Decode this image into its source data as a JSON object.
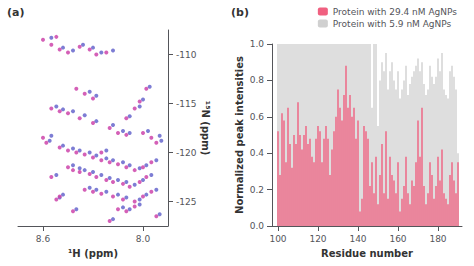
{
  "chart_data": [
    {
      "type": "scatter",
      "title": "(a)",
      "x_label": "¹H (ppm)",
      "y_label": "¹⁵N (ppm)",
      "xlim": [
        8.75,
        7.85
      ],
      "ylim": [
        -127.5,
        -107.5
      ],
      "xticks": [
        {
          "value": 8.0,
          "label": "8.0"
        },
        8.6
      ],
      "yticks": [
        -110,
        -115,
        -120,
        -125
      ],
      "grid": false,
      "series": [
        {
          "color": "#6666cc",
          "values": [
            [
              8.48,
              -109.3
            ],
            [
              8.42,
              -109.6
            ],
            [
              8.36,
              -109.0
            ],
            [
              8.3,
              -109.3
            ],
            [
              8.25,
              -109.8
            ],
            [
              8.18,
              -109.6
            ],
            [
              8.55,
              -108.3
            ],
            [
              8.32,
              -113.8
            ],
            [
              8.28,
              -114.2
            ],
            [
              8.52,
              -115.3
            ],
            [
              8.48,
              -115.6
            ],
            [
              8.42,
              -115.8
            ],
            [
              8.35,
              -116.2
            ],
            [
              8.28,
              -116.8
            ],
            [
              8.18,
              -117.2
            ],
            [
              8.12,
              -117.8
            ],
            [
              8.08,
              -118.0
            ],
            [
              7.97,
              -117.8
            ],
            [
              7.9,
              -118.3
            ],
            [
              7.89,
              -118.8
            ],
            [
              8.55,
              -118.3
            ],
            [
              8.56,
              -118.8
            ],
            [
              8.48,
              -119.3
            ],
            [
              8.42,
              -119.6
            ],
            [
              8.38,
              -119.8
            ],
            [
              8.32,
              -120.0
            ],
            [
              8.28,
              -120.3
            ],
            [
              8.22,
              -120.6
            ],
            [
              8.18,
              -120.8
            ],
            [
              8.12,
              -121.0
            ],
            [
              8.08,
              -121.3
            ],
            [
              8.02,
              -121.6
            ],
            [
              7.98,
              -121.3
            ],
            [
              7.92,
              -120.8
            ],
            [
              8.42,
              -121.3
            ],
            [
              8.38,
              -121.6
            ],
            [
              8.35,
              -121.8
            ],
            [
              8.3,
              -122.0
            ],
            [
              8.25,
              -122.3
            ],
            [
              8.2,
              -122.6
            ],
            [
              8.15,
              -122.8
            ],
            [
              8.1,
              -123.0
            ],
            [
              8.05,
              -123.3
            ],
            [
              8.0,
              -122.8
            ],
            [
              7.95,
              -122.3
            ],
            [
              8.32,
              -123.6
            ],
            [
              8.28,
              -123.8
            ],
            [
              8.22,
              -124.0
            ],
            [
              8.15,
              -124.3
            ],
            [
              8.1,
              -124.6
            ],
            [
              8.02,
              -124.8
            ],
            [
              7.98,
              -124.3
            ],
            [
              7.92,
              -123.8
            ],
            [
              8.48,
              -124.3
            ],
            [
              8.5,
              -124.6
            ],
            [
              8.12,
              -125.6
            ],
            [
              8.08,
              -125.8
            ],
            [
              8.02,
              -125.3
            ],
            [
              7.9,
              -126.3
            ],
            [
              8.4,
              -125.8
            ],
            [
              8.18,
              -126.8
            ],
            [
              8.22,
              -119.8
            ],
            [
              8.52,
              -122.3
            ],
            [
              8.08,
              -116.3
            ],
            [
              8.02,
              -115.3
            ],
            [
              8.0,
              -114.6
            ],
            [
              7.96,
              -113.3
            ]
          ]
        },
        {
          "color": "#cc44aa",
          "values": [
            [
              8.55,
              -109.0
            ],
            [
              8.5,
              -109.5
            ],
            [
              8.45,
              -109.8
            ],
            [
              8.38,
              -109.2
            ],
            [
              8.32,
              -109.5
            ],
            [
              8.28,
              -110.0
            ],
            [
              8.22,
              -109.8
            ],
            [
              8.6,
              -108.5
            ],
            [
              8.52,
              -108.2
            ],
            [
              8.4,
              -113.5
            ],
            [
              8.35,
              -114.0
            ],
            [
              8.3,
              -114.5
            ],
            [
              8.55,
              -115.5
            ],
            [
              8.5,
              -115.8
            ],
            [
              8.45,
              -116.0
            ],
            [
              8.38,
              -116.5
            ],
            [
              8.3,
              -117.0
            ],
            [
              8.2,
              -117.5
            ],
            [
              8.15,
              -118.0
            ],
            [
              8.1,
              -118.2
            ],
            [
              8.0,
              -118.0
            ],
            [
              7.95,
              -118.5
            ],
            [
              7.92,
              -119.0
            ],
            [
              8.6,
              -118.5
            ],
            [
              8.58,
              -119.0
            ],
            [
              8.5,
              -119.5
            ],
            [
              8.45,
              -119.8
            ],
            [
              8.4,
              -120.0
            ],
            [
              8.35,
              -120.2
            ],
            [
              8.3,
              -120.5
            ],
            [
              8.25,
              -120.8
            ],
            [
              8.2,
              -121.0
            ],
            [
              8.15,
              -121.2
            ],
            [
              8.1,
              -121.5
            ],
            [
              8.05,
              -121.8
            ],
            [
              8.0,
              -121.5
            ],
            [
              7.95,
              -121.0
            ],
            [
              8.45,
              -121.5
            ],
            [
              8.42,
              -121.8
            ],
            [
              8.38,
              -122.0
            ],
            [
              8.32,
              -122.2
            ],
            [
              8.28,
              -122.5
            ],
            [
              8.22,
              -122.8
            ],
            [
              8.18,
              -123.0
            ],
            [
              8.12,
              -123.2
            ],
            [
              8.08,
              -123.5
            ],
            [
              8.02,
              -123.0
            ],
            [
              7.98,
              -122.5
            ],
            [
              8.35,
              -123.8
            ],
            [
              8.3,
              -124.0
            ],
            [
              8.25,
              -124.2
            ],
            [
              8.18,
              -124.5
            ],
            [
              8.12,
              -124.8
            ],
            [
              8.05,
              -125.0
            ],
            [
              8.0,
              -124.5
            ],
            [
              7.95,
              -124.0
            ],
            [
              8.5,
              -124.5
            ],
            [
              8.52,
              -124.8
            ],
            [
              8.15,
              -125.8
            ],
            [
              8.1,
              -126.0
            ],
            [
              8.05,
              -125.5
            ],
            [
              7.92,
              -126.5
            ],
            [
              8.42,
              -126.0
            ],
            [
              8.2,
              -127.0
            ],
            [
              8.25,
              -120.0
            ],
            [
              8.55,
              -122.5
            ],
            [
              8.1,
              -116.5
            ],
            [
              8.05,
              -115.5
            ],
            [
              8.02,
              -114.8
            ],
            [
              7.98,
              -113.5
            ]
          ]
        }
      ]
    },
    {
      "type": "bar",
      "title": "(b)",
      "x_label": "Residue number",
      "y_label": "Normalized peak intensities",
      "xlim": [
        97,
        192
      ],
      "ylim": [
        0.0,
        1.0
      ],
      "xticks": [
        100,
        120,
        140,
        160,
        180
      ],
      "yticks": [
        {
          "value": 0.0,
          "label": "0.0"
        },
        0.2,
        0.4,
        0.6,
        0.8,
        {
          "value": 1.0,
          "label": "1.0"
        }
      ],
      "grid": false,
      "legend": "upper right",
      "x": [
        100,
        101,
        102,
        103,
        104,
        105,
        106,
        107,
        108,
        109,
        110,
        111,
        112,
        113,
        114,
        115,
        116,
        117,
        118,
        119,
        120,
        121,
        122,
        123,
        124,
        125,
        126,
        127,
        128,
        129,
        130,
        131,
        132,
        133,
        134,
        135,
        136,
        137,
        138,
        139,
        140,
        141,
        142,
        143,
        144,
        145,
        146,
        147,
        148,
        149,
        150,
        151,
        152,
        153,
        154,
        155,
        156,
        157,
        158,
        159,
        160,
        161,
        162,
        163,
        164,
        165,
        166,
        167,
        168,
        169,
        170,
        171,
        172,
        173,
        174,
        175,
        176,
        177,
        178,
        179,
        180,
        181,
        182,
        183,
        184,
        185,
        186,
        187,
        188,
        189,
        190
      ],
      "series": [
        {
          "name": "Protein with 29.4 nM AgNPs",
          "color": "#F06080",
          "values": [
            0.52,
            0.28,
            0.62,
            0.58,
            0.35,
            0.65,
            0.45,
            0.32,
            0.5,
            0.45,
            0.68,
            0.5,
            0.42,
            0.5,
            0.55,
            0.45,
            0.48,
            0.38,
            0.35,
            0.48,
            0.55,
            0.52,
            0.35,
            0.48,
            0.55,
            0.48,
            0.28,
            0.42,
            0.52,
            0.6,
            0.75,
            0.65,
            0.58,
            0.72,
            0.88,
            0.65,
            0.72,
            0.6,
            0.65,
            0.48,
            0.58,
            0.08,
            0.15,
            0.55,
            0.52,
            0.48,
            0.22,
            0.35,
            0.18,
            0.38,
            0.12,
            0.28,
            0.45,
            0.18,
            0.52,
            0.15,
            0.38,
            0.28,
            0.25,
            0.18,
            0.35,
            0.08,
            0.15,
            0.22,
            0.38,
            0.18,
            0.12,
            0.25,
            0.22,
            0.35,
            0.58,
            0.38,
            0.65,
            0.22,
            0.12,
            0.18,
            0.35,
            0.28,
            0.15,
            0.22,
            0.38,
            0.25,
            0.42,
            0.18,
            0.15,
            0.12,
            0.28,
            0.35,
            0.25,
            0.18,
            0.35
          ]
        },
        {
          "name": "Protein with 5.9 nM AgNPs",
          "color": "#D0D0D0",
          "values": [
            1.0,
            1.0,
            1.0,
            1.0,
            1.0,
            1.0,
            1.0,
            1.0,
            1.0,
            1.0,
            1.0,
            1.0,
            1.0,
            1.0,
            1.0,
            1.0,
            1.0,
            1.0,
            1.0,
            1.0,
            1.0,
            1.0,
            1.0,
            1.0,
            1.0,
            1.0,
            1.0,
            1.0,
            1.0,
            1.0,
            1.0,
            1.0,
            1.0,
            1.0,
            1.0,
            1.0,
            1.0,
            1.0,
            1.0,
            1.0,
            1.0,
            1.0,
            1.0,
            1.0,
            1.0,
            1.0,
            1.0,
            0.65,
            1.0,
            1.0,
            0.55,
            0.8,
            0.9,
            0.85,
            0.95,
            0.75,
            0.85,
            0.9,
            0.8,
            0.75,
            0.85,
            0.7,
            0.75,
            0.8,
            0.88,
            0.72,
            0.78,
            0.82,
            0.85,
            0.88,
            0.92,
            0.85,
            0.9,
            0.78,
            0.72,
            0.75,
            0.88,
            0.82,
            0.78,
            0.82,
            0.92,
            0.85,
            0.95,
            0.75,
            0.72,
            0.7,
            0.85,
            0.88,
            0.82,
            0.75,
            0.4
          ]
        }
      ]
    }
  ]
}
